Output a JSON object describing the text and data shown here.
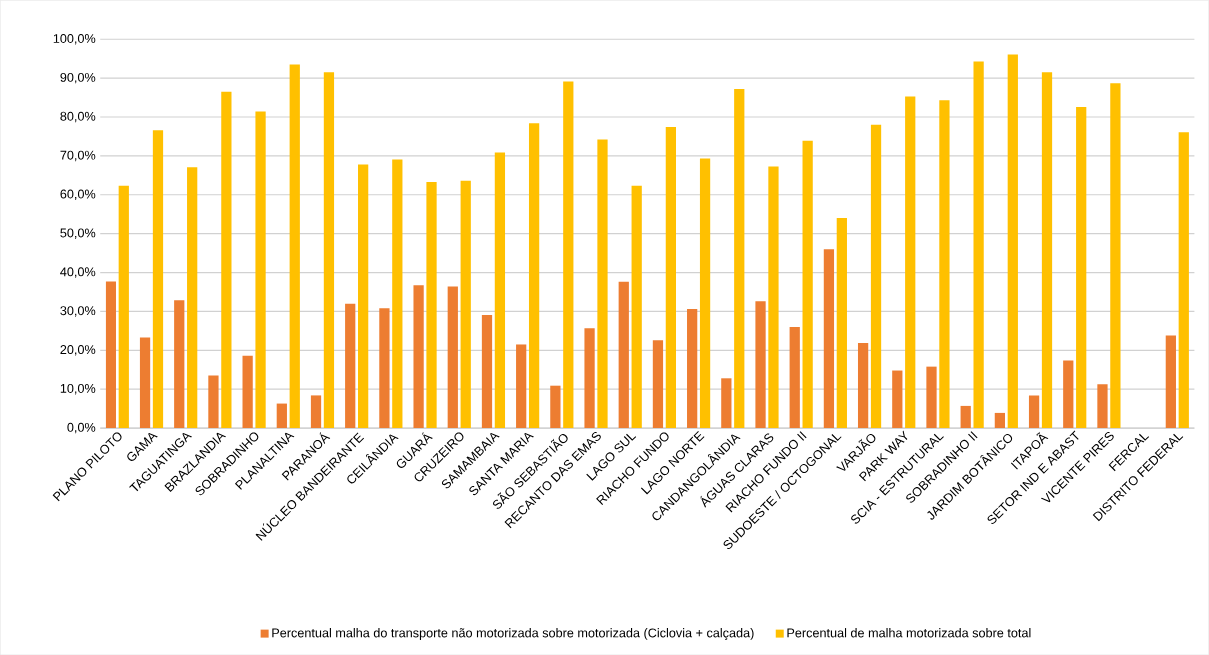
{
  "chart_data": {
    "type": "bar",
    "categories": [
      "PLANO PILOTO",
      "GAMA",
      "TAGUATINGA",
      "BRAZLANDIA",
      "SOBRADINHO",
      "PLANALTINA",
      "PARANOÁ",
      "NÚCLEO BANDEIRANTE",
      "CEILÂNDIA",
      "GUARÁ",
      "CRUZEIRO",
      "SAMAMBAIA",
      "SANTA MARIA",
      "SÃO SEBASTIÃO",
      "RECANTO DAS EMAS",
      "LAGO SUL",
      "RIACHO FUNDO",
      "LAGO NORTE",
      "CANDANGOLÂNDIA",
      "ÁGUAS CLARAS",
      "RIACHO FUNDO II",
      "SUDOESTE / OCTOGONAL",
      "VARJÃO",
      "PARK WAY",
      "SCIA - ESTRUTURAL",
      "SOBRADINHO II",
      "JARDIM BOTÂNICO",
      "ITAPOÃ",
      "SETOR IND E ABAST",
      "VICENTE PIRES",
      "FERCAL",
      "DISTRITO FEDERAL"
    ],
    "series": [
      {
        "name": "Percentual malha do transporte não motorizada sobre motorizada (Ciclovia + calçada)",
        "color": "#ed7d31",
        "values": [
          37.7,
          23.3,
          32.9,
          13.5,
          18.6,
          6.3,
          8.4,
          32.0,
          30.8,
          36.7,
          36.4,
          29.1,
          21.5,
          10.9,
          25.7,
          37.6,
          22.6,
          30.6,
          12.8,
          32.6,
          26.0,
          46.0,
          21.9,
          14.8,
          15.8,
          5.7,
          3.9,
          8.4,
          17.4,
          11.3,
          null,
          23.8
        ]
      },
      {
        "name": "Percentual de malha motorizada sobre total",
        "color": "#ffc000",
        "values": [
          62.3,
          76.6,
          67.1,
          86.5,
          81.4,
          93.5,
          91.5,
          67.8,
          69.1,
          63.3,
          63.6,
          70.9,
          78.4,
          89.1,
          74.2,
          62.3,
          77.4,
          69.3,
          87.2,
          67.3,
          73.9,
          54.0,
          78.0,
          85.3,
          84.3,
          94.3,
          96.1,
          91.5,
          82.6,
          88.7,
          null,
          76.1
        ]
      }
    ],
    "ylim": [
      0,
      100
    ],
    "yticks": [
      {
        "value": 0,
        "label": "0,0%"
      },
      {
        "value": 10,
        "label": "10,0%"
      },
      {
        "value": 20,
        "label": "20,0%"
      },
      {
        "value": 30,
        "label": "30,0%"
      },
      {
        "value": 40,
        "label": "40,0%"
      },
      {
        "value": 50,
        "label": "50,0%"
      },
      {
        "value": 60,
        "label": "60,0%"
      },
      {
        "value": 70,
        "label": "70,0%"
      },
      {
        "value": 80,
        "label": "80,0%"
      },
      {
        "value": 90,
        "label": "90,0%"
      },
      {
        "value": 100,
        "label": "100,0%"
      }
    ],
    "grid": "y",
    "legend": "bottom"
  }
}
